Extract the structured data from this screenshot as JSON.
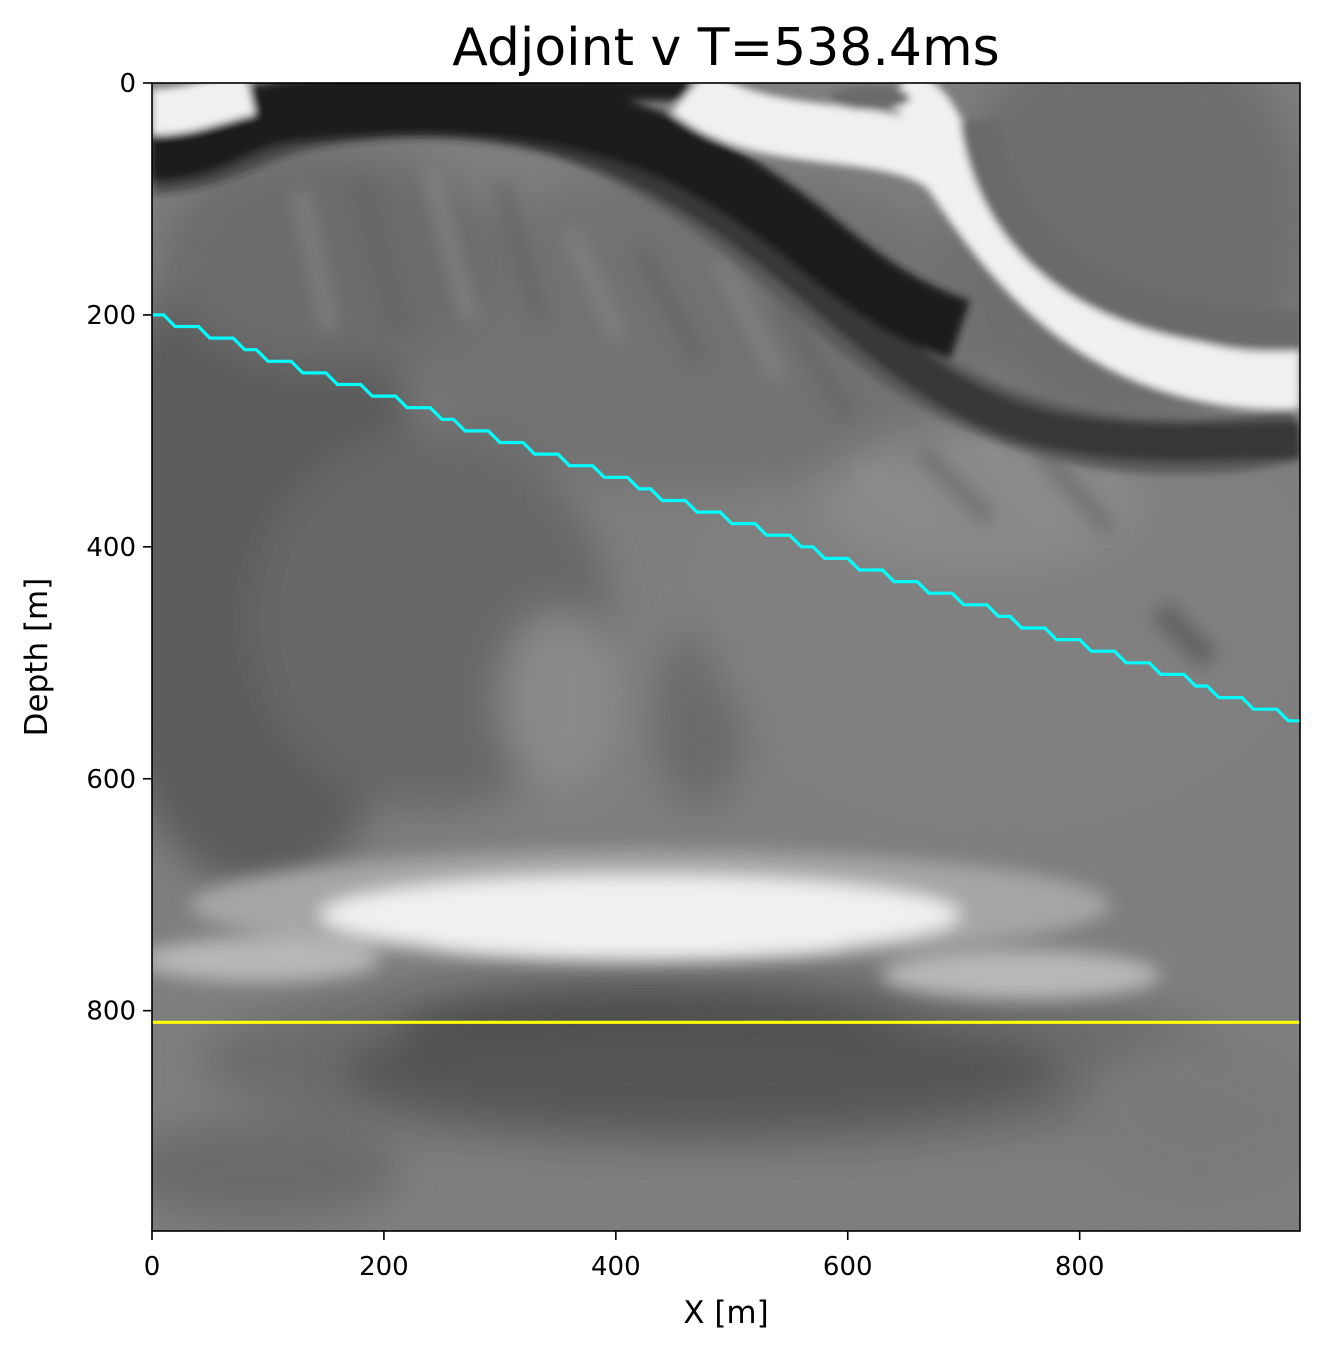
{
  "chart_data": {
    "type": "heatmap",
    "title": "Adjoint v T=538.4ms",
    "xlabel": "X [m]",
    "ylabel": "Depth [m]",
    "xlim": [
      0,
      990
    ],
    "ylim": [
      990,
      0
    ],
    "x_ticks": [
      0,
      200,
      400,
      600,
      800
    ],
    "y_ticks": [
      0,
      200,
      400,
      600,
      800
    ],
    "colormap": "gray",
    "grid": false,
    "series": [
      {
        "type": "line",
        "color": "#00ffff",
        "x": [
          0,
          10,
          20,
          40,
          50,
          70,
          80,
          90,
          100,
          120,
          130,
          150,
          160,
          180,
          190,
          210,
          220,
          240,
          250,
          260,
          270,
          290,
          300,
          320,
          330,
          350,
          360,
          380,
          390,
          410,
          420,
          430,
          440,
          460,
          470,
          490,
          500,
          520,
          530,
          550,
          560,
          570,
          580,
          600,
          610,
          630,
          640,
          660,
          670,
          690,
          700,
          720,
          730,
          740,
          750,
          770,
          780,
          800,
          810,
          830,
          840,
          860,
          870,
          890,
          900,
          910,
          920,
          940,
          950,
          970,
          980,
          990
        ],
        "y": [
          200,
          200,
          210,
          210,
          220,
          220,
          230,
          230,
          240,
          240,
          250,
          250,
          260,
          260,
          270,
          270,
          280,
          280,
          290,
          290,
          300,
          300,
          310,
          310,
          320,
          320,
          330,
          330,
          340,
          340,
          350,
          350,
          360,
          360,
          370,
          370,
          380,
          380,
          390,
          390,
          400,
          400,
          410,
          410,
          420,
          420,
          430,
          430,
          440,
          440,
          450,
          450,
          460,
          460,
          470,
          470,
          480,
          480,
          490,
          490,
          500,
          500,
          510,
          510,
          520,
          520,
          530,
          530,
          540,
          540,
          550,
          550
        ]
      },
      {
        "type": "line",
        "color": "#ffff00",
        "x": [
          0,
          990
        ],
        "y": [
          810,
          810
        ]
      }
    ]
  }
}
